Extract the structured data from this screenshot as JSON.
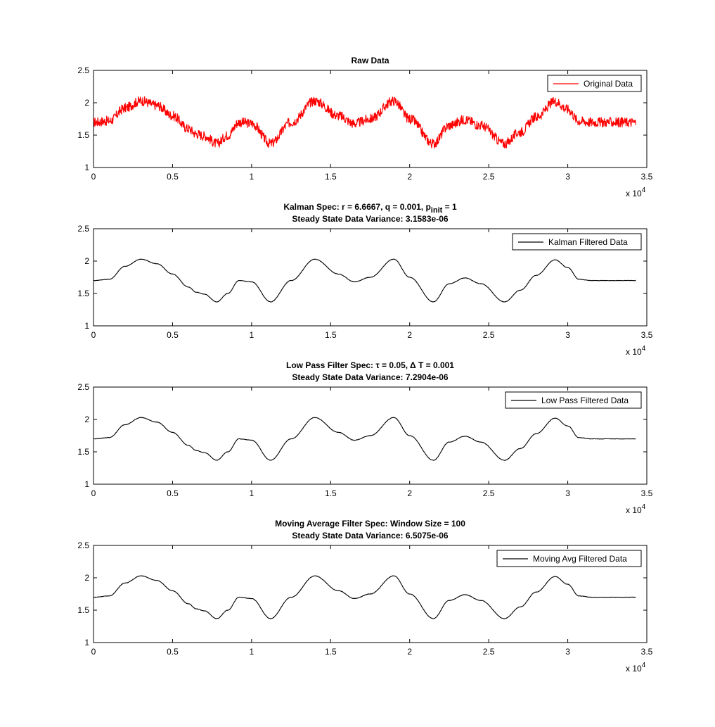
{
  "chart_data": [
    {
      "type": "line",
      "title": "Raw Data",
      "title_line2": "",
      "xlim": [
        0,
        35000
      ],
      "ylim": [
        1,
        2.5
      ],
      "x_ticks": [
        "0",
        "0.5",
        "1",
        "1.5",
        "2",
        "2.5",
        "3",
        "3.5"
      ],
      "y_ticks": [
        "1",
        "1.5",
        "2",
        "2.5"
      ],
      "x_exponent": "x 10",
      "x_exponent_power": "4",
      "legend": "top-right",
      "grid": false,
      "series": [
        {
          "name": "Original Data",
          "color": "#ff0000",
          "noise_band": 0.075,
          "x": [
            0,
            1000,
            2000,
            3000,
            4000,
            5000,
            6000,
            6500,
            7000,
            7800,
            8500,
            9200,
            10000,
            11200,
            12500,
            14000,
            15500,
            16500,
            17500,
            19000,
            20000,
            21500,
            22500,
            23500,
            24500,
            26000,
            27000,
            28000,
            29200,
            30000,
            30700,
            31500,
            34300
          ],
          "y": [
            1.7,
            1.72,
            1.92,
            2.03,
            1.96,
            1.8,
            1.6,
            1.52,
            1.49,
            1.37,
            1.5,
            1.7,
            1.68,
            1.37,
            1.7,
            2.03,
            1.8,
            1.68,
            1.75,
            2.03,
            1.75,
            1.37,
            1.65,
            1.74,
            1.65,
            1.37,
            1.55,
            1.78,
            2.02,
            1.9,
            1.72,
            1.7,
            1.7
          ]
        }
      ]
    },
    {
      "type": "line",
      "title": "Kalman Spec: r = 6.6667, q = 0.001, p",
      "title_sub": "init",
      "title_after": " = 1",
      "title_line2": "Steady State Data Variance: 3.1583e-06",
      "xlim": [
        0,
        35000
      ],
      "ylim": [
        1,
        2.5
      ],
      "x_ticks": [
        "0",
        "0.5",
        "1",
        "1.5",
        "2",
        "2.5",
        "3",
        "3.5"
      ],
      "y_ticks": [
        "1",
        "1.5",
        "2",
        "2.5"
      ],
      "x_exponent": "x 10",
      "x_exponent_power": "4",
      "legend": "top-right",
      "grid": false,
      "series": [
        {
          "name": "Kalman Filtered Data",
          "color": "#000000",
          "noise_band": 0,
          "x": [
            0,
            1000,
            2000,
            3000,
            4000,
            5000,
            6000,
            6500,
            7000,
            7800,
            8500,
            9200,
            10000,
            11200,
            12500,
            14000,
            15500,
            16500,
            17500,
            19000,
            20000,
            21500,
            22500,
            23500,
            24500,
            26000,
            27000,
            28000,
            29200,
            30000,
            30700,
            31500,
            34300
          ],
          "y": [
            1.7,
            1.72,
            1.92,
            2.03,
            1.96,
            1.8,
            1.6,
            1.52,
            1.49,
            1.37,
            1.5,
            1.7,
            1.68,
            1.37,
            1.7,
            2.03,
            1.8,
            1.68,
            1.75,
            2.03,
            1.75,
            1.37,
            1.65,
            1.74,
            1.65,
            1.37,
            1.55,
            1.78,
            2.02,
            1.9,
            1.72,
            1.7,
            1.7
          ]
        }
      ]
    },
    {
      "type": "line",
      "title": "Low Pass Filter Spec: τ = 0.05, Δ T = 0.001",
      "title_line2": "Steady State Data Variance: 7.2904e-06",
      "xlim": [
        0,
        35000
      ],
      "ylim": [
        1,
        2.5
      ],
      "x_ticks": [
        "0",
        "0.5",
        "1",
        "1.5",
        "2",
        "2.5",
        "3",
        "3.5"
      ],
      "y_ticks": [
        "1",
        "1.5",
        "2",
        "2.5"
      ],
      "x_exponent": "x 10",
      "x_exponent_power": "4",
      "legend": "top-right",
      "grid": false,
      "series": [
        {
          "name": "Low Pass Filtered Data",
          "color": "#000000",
          "noise_band": 0,
          "x": [
            0,
            1000,
            2000,
            3000,
            4000,
            5000,
            6000,
            6500,
            7000,
            7800,
            8500,
            9200,
            10000,
            11200,
            12500,
            14000,
            15500,
            16500,
            17500,
            19000,
            20000,
            21500,
            22500,
            23500,
            24500,
            26000,
            27000,
            28000,
            29200,
            30000,
            30700,
            31500,
            34300
          ],
          "y": [
            1.7,
            1.72,
            1.92,
            2.03,
            1.96,
            1.8,
            1.6,
            1.52,
            1.49,
            1.37,
            1.5,
            1.7,
            1.68,
            1.37,
            1.7,
            2.03,
            1.8,
            1.68,
            1.75,
            2.03,
            1.75,
            1.37,
            1.65,
            1.74,
            1.65,
            1.37,
            1.55,
            1.78,
            2.02,
            1.9,
            1.72,
            1.7,
            1.7
          ]
        }
      ]
    },
    {
      "type": "line",
      "title": "Moving Average Filter Spec: Window Size = 100",
      "title_line2": "Steady State Data Variance: 6.5075e-06",
      "xlim": [
        0,
        35000
      ],
      "ylim": [
        1,
        2.5
      ],
      "x_ticks": [
        "0",
        "0.5",
        "1",
        "1.5",
        "2",
        "2.5",
        "3",
        "3.5"
      ],
      "y_ticks": [
        "1",
        "1.5",
        "2",
        "2.5"
      ],
      "x_exponent": "x 10",
      "x_exponent_power": "4",
      "legend": "top-right",
      "grid": false,
      "series": [
        {
          "name": "Moving Avg Filtered Data",
          "color": "#000000",
          "noise_band": 0,
          "x": [
            0,
            1000,
            2000,
            3000,
            4000,
            5000,
            6000,
            6500,
            7000,
            7800,
            8500,
            9200,
            10000,
            11200,
            12500,
            14000,
            15500,
            16500,
            17500,
            19000,
            20000,
            21500,
            22500,
            23500,
            24500,
            26000,
            27000,
            28000,
            29200,
            30000,
            30700,
            31500,
            34300
          ],
          "y": [
            1.7,
            1.72,
            1.92,
            2.03,
            1.96,
            1.8,
            1.6,
            1.52,
            1.49,
            1.37,
            1.5,
            1.7,
            1.68,
            1.37,
            1.7,
            2.03,
            1.8,
            1.68,
            1.75,
            2.03,
            1.75,
            1.37,
            1.65,
            1.74,
            1.65,
            1.37,
            1.55,
            1.78,
            2.02,
            1.9,
            1.72,
            1.7,
            1.7
          ]
        }
      ]
    }
  ]
}
